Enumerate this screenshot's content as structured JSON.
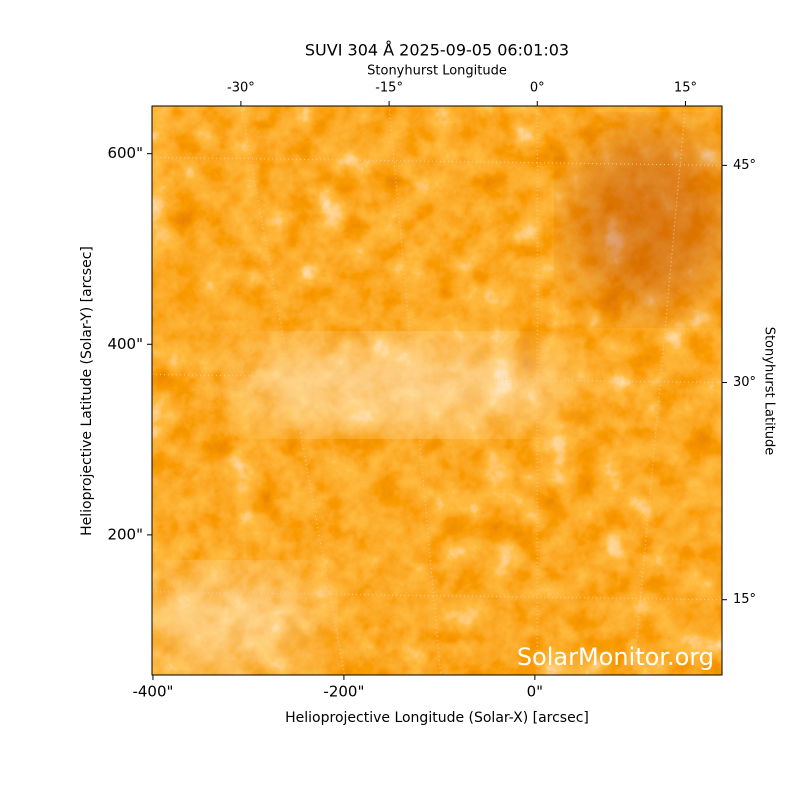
{
  "chart_data": {
    "type": "image",
    "title": "SUVI 304 Å 2025-09-05 06:01:03",
    "xlabel": "Helioprojective Longitude (Solar-X) [arcsec]",
    "ylabel": "Helioprojective Latitude (Solar-Y) [arcsec]",
    "x2label": "Stonyhurst Longitude",
    "y2label": "Stonyhurst Latitude",
    "watermark": "SolarMonitor.org",
    "xlim": [
      -401,
      196
    ],
    "ylim": [
      53,
      650
    ],
    "xticks": [
      {
        "value": -400,
        "label": "-400\""
      },
      {
        "value": -200,
        "label": "-200\""
      },
      {
        "value": 0,
        "label": "0\""
      }
    ],
    "yticks": [
      {
        "value": 200,
        "label": "200\""
      },
      {
        "value": 400,
        "label": "400\""
      },
      {
        "value": 600,
        "label": "600\""
      }
    ],
    "x2lim": [
      -39,
      18.7
    ],
    "x2ticks": [
      {
        "value": -30,
        "label": "-30°"
      },
      {
        "value": -15,
        "label": "-15°"
      },
      {
        "value": 0,
        "label": "0°"
      },
      {
        "value": 15,
        "label": "15°"
      }
    ],
    "y2lim": [
      9.8,
      49.1
    ],
    "y2ticks": [
      {
        "value": 15,
        "label": "15°"
      },
      {
        "value": 30,
        "label": "30°"
      },
      {
        "value": 45,
        "label": "45°"
      }
    ]
  }
}
